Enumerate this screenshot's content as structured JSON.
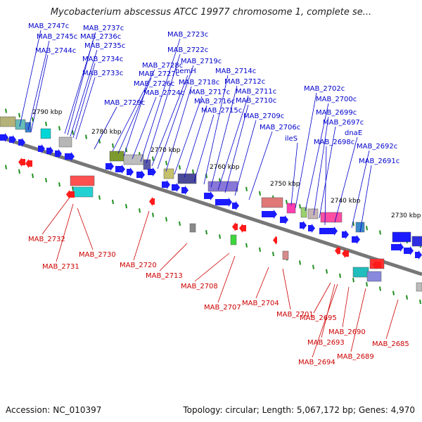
{
  "title": "Mycobacterium abscessus ATCC 19977 chromosome 1, complete se...",
  "footer": {
    "accession": "Accession: NC_010397",
    "summary": "Topology: circular; Length: 5,067,172 bp; Genes: 4,970"
  },
  "colors": {
    "forward_label": "#0000cc",
    "reverse_label": "#cc0000",
    "backbone": "#777777",
    "tick": "#1f8f1f",
    "forward_arrow": "#1b1bff",
    "reverse_arrow": "#ff1a1a"
  },
  "kbp_ticks": [
    "2790 kbp",
    "2780 kbp",
    "2770 kbp",
    "2760 kbp",
    "2750 kbp",
    "2740 kbp",
    "2730 kbp"
  ],
  "forward_genes": [
    "MAB_2747c",
    "MAB_2745c",
    "MAB_2744c",
    "MAB_2737c",
    "MAB_2736c",
    "MAB_2735c",
    "MAB_2734c",
    "MAB_2733c",
    "MAB_2729c",
    "MAB_2728c",
    "MAB_2727c",
    "MAB_2726c",
    "MAB_2724c",
    "MAB_2723c",
    "MAB_2722c",
    "hemH",
    "MAB_2719c",
    "MAB_2718c",
    "MAB_2717c",
    "MAB_2716c",
    "MAB_2715c",
    "MAB_2714c",
    "MAB_2712c",
    "MAB_2711c",
    "MAB_2710c",
    "MAB_2709c",
    "MAB_2706c",
    "ileS",
    "MAB_2702c",
    "MAB_2700c",
    "MAB_2699c",
    "MAB_2697c",
    "dnaE",
    "MAB_2698c",
    "MAB_2692c",
    "MAB_2691c"
  ],
  "reverse_genes": [
    "MAB_2732",
    "MAB_2731",
    "MAB_2730",
    "MAB_2720",
    "MAB_2713",
    "MAB_2708",
    "MAB_2707",
    "MAB_2704",
    "MAB_2701",
    "MAB_2695",
    "MAB_2693",
    "MAB_2694",
    "MAB_2690",
    "MAB_2689",
    "MAB_2685"
  ]
}
